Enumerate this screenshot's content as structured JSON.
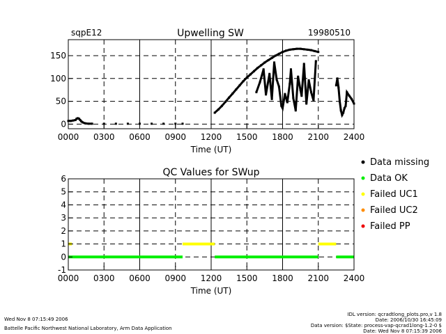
{
  "chart_data": [
    {
      "type": "scatter",
      "title": "Upwelling SW",
      "site": "sqpE12",
      "date": "19980510",
      "xlabel": "Time (UT)",
      "ylabel": "",
      "xlim": [
        0,
        2400
      ],
      "ylim": [
        -10,
        185
      ],
      "x_ticks": [
        "0000",
        "0300",
        "0600",
        "0900",
        "1200",
        "1500",
        "1800",
        "2100",
        "2400"
      ],
      "y_ticks": [
        "0",
        "50",
        "100",
        "150"
      ],
      "grid": true,
      "series": [
        {
          "values": [
            [
              0,
              7
            ],
            [
              20,
              7
            ],
            [
              40,
              8
            ],
            [
              60,
              9
            ],
            [
              70,
              12
            ],
            [
              80,
              13
            ],
            [
              90,
              12
            ],
            [
              100,
              9
            ],
            [
              110,
              6
            ],
            [
              120,
              4
            ],
            [
              140,
              2
            ],
            [
              170,
              1
            ],
            [
              200,
              1
            ],
            [
              300,
              1
            ],
            [
              400,
              1
            ],
            [
              500,
              1
            ],
            [
              600,
              1
            ],
            [
              700,
              1
            ],
            [
              800,
              1
            ],
            [
              900,
              1
            ],
            [
              960,
              1
            ],
            [
              1230,
              25
            ],
            [
              1260,
              32
            ],
            [
              1290,
              40
            ],
            [
              1320,
              49
            ],
            [
              1350,
              58
            ],
            [
              1380,
              67
            ],
            [
              1410,
              76
            ],
            [
              1440,
              85
            ],
            [
              1470,
              94
            ],
            [
              1500,
              102
            ],
            [
              1530,
              109
            ],
            [
              1560,
              116
            ],
            [
              1590,
              123
            ],
            [
              1620,
              129
            ],
            [
              1650,
              135
            ],
            [
              1680,
              140
            ],
            [
              1710,
              145
            ],
            [
              1740,
              150
            ],
            [
              1770,
              154
            ],
            [
              1800,
              158
            ],
            [
              1830,
              161
            ],
            [
              1860,
              163
            ],
            [
              1890,
              164
            ],
            [
              1920,
              165
            ],
            [
              1950,
              165
            ],
            [
              1980,
              164
            ],
            [
              2010,
              163
            ],
            [
              2040,
              162
            ],
            [
              2070,
              160
            ],
            [
              2100,
              158
            ],
            [
              1580,
              70
            ],
            [
              1610,
              92
            ],
            [
              1640,
              120
            ],
            [
              1660,
              65
            ],
            [
              1690,
              110
            ],
            [
              1710,
              55
            ],
            [
              1730,
              135
            ],
            [
              1750,
              98
            ],
            [
              1770,
              82
            ],
            [
              1790,
              40
            ],
            [
              1800,
              35
            ],
            [
              1820,
              66
            ],
            [
              1840,
              48
            ],
            [
              1860,
              88
            ],
            [
              1870,
              120
            ],
            [
              1890,
              57
            ],
            [
              1910,
              30
            ],
            [
              1930,
              104
            ],
            [
              1950,
              75
            ],
            [
              1960,
              62
            ],
            [
              1980,
              132
            ],
            [
              2000,
              45
            ],
            [
              2020,
              96
            ],
            [
              2040,
              70
            ],
            [
              2060,
              52
            ],
            [
              2080,
              138
            ],
            [
              2250,
              85
            ],
            [
              2260,
              100
            ],
            [
              2270,
              80
            ],
            [
              2280,
              50
            ],
            [
              2290,
              30
            ],
            [
              2300,
              20
            ],
            [
              2310,
              25
            ],
            [
              2320,
              35
            ],
            [
              2330,
              40
            ],
            [
              2340,
              70
            ],
            [
              2360,
              62
            ],
            [
              2380,
              55
            ],
            [
              2400,
              45
            ]
          ]
        }
      ]
    },
    {
      "type": "line",
      "title": "QC Values for SWup",
      "xlabel": "Time (UT)",
      "ylabel": "",
      "xlim": [
        0,
        2400
      ],
      "ylim": [
        -1,
        6
      ],
      "x_ticks": [
        "0000",
        "0300",
        "0600",
        "0900",
        "1200",
        "1500",
        "1800",
        "2100",
        "2400"
      ],
      "y_ticks": [
        "-1",
        "0",
        "1",
        "2",
        "3",
        "4",
        "5",
        "6"
      ],
      "grid": true,
      "segments": [
        {
          "x0": 0,
          "x1": 960,
          "value": 0,
          "color": "#00ee00"
        },
        {
          "x0": 0,
          "x1": 30,
          "value": 1,
          "color": "#ffff00"
        },
        {
          "x0": 960,
          "x1": 1230,
          "value": 1,
          "color": "#ffff00"
        },
        {
          "x0": 1230,
          "x1": 2100,
          "value": 0,
          "color": "#00ee00"
        },
        {
          "x0": 2100,
          "x1": 2250,
          "value": 1,
          "color": "#ffff00"
        },
        {
          "x0": 2250,
          "x1": 2400,
          "value": 0,
          "color": "#00ee00"
        }
      ]
    }
  ],
  "legend": [
    {
      "label": "Data missing",
      "color": "#000000"
    },
    {
      "label": "Data OK",
      "color": "#00ee00"
    },
    {
      "label": "Failed UC1",
      "color": "#ffff00"
    },
    {
      "label": "Failed UC2",
      "color": "#ff8c00"
    },
    {
      "label": "Failed PP",
      "color": "#ee0000"
    }
  ],
  "footer": {
    "timestamp": "Wed Nov  8 07:15:49 2006",
    "org": "Battelle Pacific Northwest National Laboratory, Arm Data Application",
    "meta": [
      "IDL version: qcradtlong_plots.pro,v 1.8",
      "Date: 2006/10/30 16:45:09",
      "Data version: $State: process-vap-qcrad1long-1.2-0 $",
      "Date: Wed Nov  8 07:15:39 2006"
    ]
  }
}
